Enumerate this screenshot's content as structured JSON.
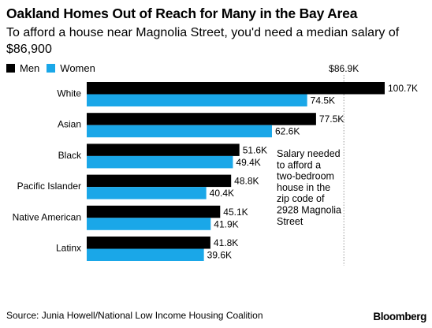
{
  "title": "Oakland Homes Out of Reach for Many in the Bay Area",
  "subtitle": "To afford a house near Magnolia Street, you'd need a median salary of $86,900",
  "source": "Source: Junia Howell/National Low Income Housing Coalition",
  "logo": "Bloomberg",
  "colors": {
    "men": "#000000",
    "women": "#1aa7e8",
    "reference_line": "#999999"
  },
  "chart_data": {
    "type": "bar",
    "orientation": "horizontal",
    "categories": [
      "White",
      "Asian",
      "Black",
      "Pacific Islander",
      "Native American",
      "Latinx"
    ],
    "series": [
      {
        "name": "Men",
        "values": [
          100.7,
          77.5,
          51.6,
          48.8,
          45.1,
          41.8
        ],
        "labels": [
          "100.7K",
          "77.5K",
          "51.6K",
          "48.8K",
          "45.1K",
          "41.8K"
        ]
      },
      {
        "name": "Women",
        "values": [
          74.5,
          62.6,
          49.4,
          40.4,
          41.9,
          39.6
        ],
        "labels": [
          "74.5K",
          "62.6K",
          "49.4K",
          "40.4K",
          "41.9K",
          "39.6K"
        ]
      }
    ],
    "reference_line": {
      "value": 86.9,
      "label": "$86.9K"
    },
    "annotation": "Salary needed to afford a two-bedroom house in the zip code of 2928 Magnolia Street",
    "xlim": [
      0,
      100.7
    ],
    "legend_position": "top-left",
    "grid": false
  }
}
